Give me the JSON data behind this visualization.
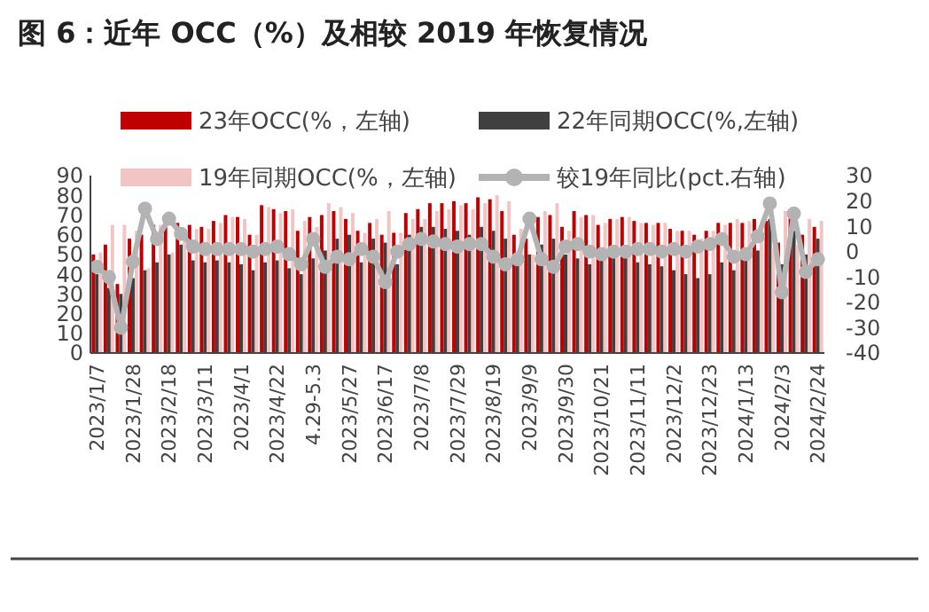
{
  "chart_data": {
    "type": "bar",
    "title": "图 6：近年 OCC（%）及相较 2019 年恢复情况",
    "categories": [
      "2023/1/7",
      null,
      null,
      "2023/1/28",
      null,
      null,
      "2023/2/18",
      null,
      null,
      "2023/3/11",
      null,
      null,
      "2023/4/1",
      null,
      null,
      "2023/4/22",
      null,
      null,
      "4.29-5.3",
      null,
      null,
      "2023/5/27",
      null,
      null,
      "2023/6/17",
      null,
      null,
      "2023/7/8",
      null,
      null,
      "2023/7/29",
      null,
      null,
      "2023/8/19",
      null,
      null,
      "2023/9/9",
      null,
      null,
      "2023/9/30",
      null,
      null,
      "2023/10/21",
      null,
      null,
      "2023/11/11",
      null,
      null,
      "2023/12/2",
      null,
      null,
      "2023/12/23",
      null,
      null,
      "2024/1/13",
      null,
      null,
      "2024/2/3",
      null,
      null,
      "2024/2/24"
    ],
    "series": [
      {
        "name": "23年OCC(%，左轴)",
        "color": "#c00000",
        "values": [
          50,
          55,
          35,
          58,
          60,
          65,
          64,
          66,
          65,
          64,
          67,
          70,
          69,
          60,
          75,
          73,
          72,
          62,
          69,
          70,
          72,
          68,
          62,
          66,
          60,
          61,
          71,
          73,
          76,
          76,
          77,
          76,
          79,
          78,
          72,
          60,
          58,
          69,
          70,
          64,
          72,
          70,
          65,
          68,
          69,
          67,
          66,
          66,
          63,
          62,
          60,
          62,
          66,
          66,
          66,
          68,
          67,
          56,
          70,
          60,
          64
        ]
      },
      {
        "name": "22年同期OCC(%,左轴)",
        "color": "#404040",
        "values": [
          40,
          33,
          30,
          38,
          42,
          46,
          50,
          55,
          47,
          46,
          47,
          46,
          45,
          42,
          46,
          47,
          43,
          40,
          48,
          52,
          58,
          60,
          46,
          58,
          56,
          45,
          60,
          64,
          64,
          63,
          62,
          60,
          64,
          62,
          58,
          45,
          50,
          55,
          58,
          50,
          48,
          45,
          48,
          50,
          50,
          46,
          45,
          44,
          42,
          40,
          38,
          40,
          46,
          42,
          48,
          52,
          68,
          45,
          62,
          50,
          58
        ]
      },
      {
        "name": "19年同期OCC(%，左轴)",
        "color": "#f2c4c4",
        "values": [
          51,
          65,
          65,
          62,
          43,
          65,
          51,
          59,
          63,
          63,
          66,
          69,
          68,
          60,
          74,
          71,
          73,
          67,
          64,
          76,
          74,
          71,
          61,
          68,
          72,
          61,
          68,
          68,
          72,
          73,
          75,
          73,
          76,
          80,
          77,
          63,
          50,
          72,
          76,
          62,
          69,
          70,
          66,
          68,
          69,
          66,
          65,
          66,
          62,
          62,
          58,
          62,
          65,
          68,
          67,
          66,
          53,
          72,
          55,
          68,
          67
        ]
      },
      {
        "name": "较19年同比(pct.右轴)",
        "type": "line",
        "axis": "y2",
        "color": "#b3b3b3",
        "marker": "circle",
        "values": [
          -6,
          -10,
          -30,
          -4,
          17,
          5,
          13,
          7,
          2,
          1,
          1,
          1,
          1,
          0,
          1,
          2,
          -1,
          -5,
          5,
          -6,
          -2,
          -3,
          1,
          -2,
          -12,
          0,
          3,
          5,
          4,
          3,
          2,
          3,
          3,
          -2,
          -5,
          -3,
          13,
          -3,
          -6,
          2,
          3,
          0,
          -1,
          0,
          0,
          1,
          1,
          0,
          1,
          0,
          2,
          3,
          5,
          -2,
          -1,
          6,
          19,
          -16,
          15,
          -8,
          -3
        ]
      }
    ],
    "ylim": [
      0,
      90
    ],
    "yticks": [
      0,
      10,
      20,
      30,
      40,
      50,
      60,
      70,
      80,
      90
    ],
    "y2lim": [
      -40,
      30
    ],
    "y2ticks": [
      -40,
      -30,
      -20,
      -10,
      0,
      10,
      20,
      30
    ],
    "legend": "top",
    "grid": false
  }
}
